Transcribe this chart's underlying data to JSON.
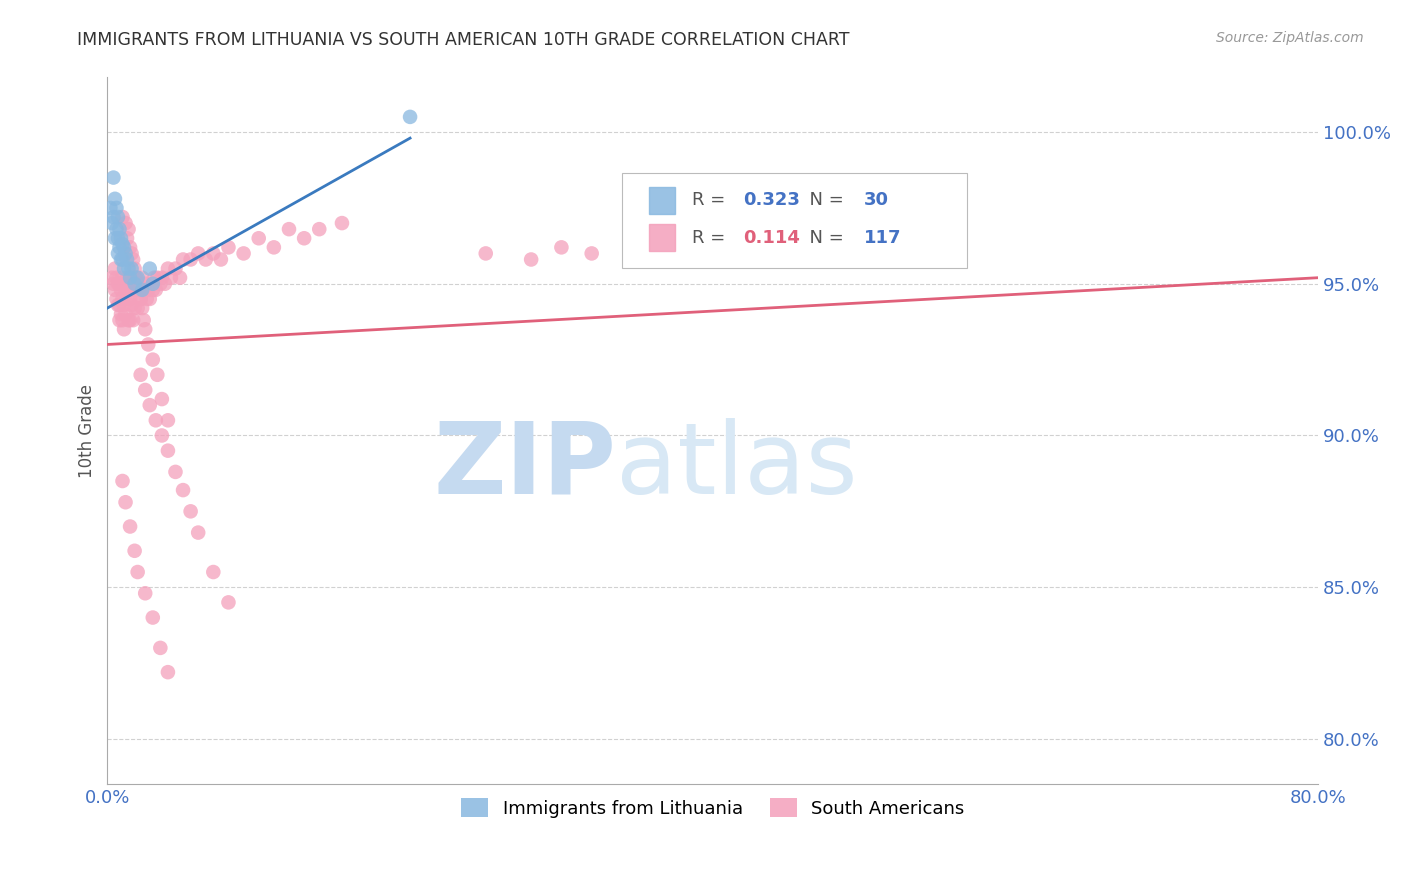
{
  "title": "IMMIGRANTS FROM LITHUANIA VS SOUTH AMERICAN 10TH GRADE CORRELATION CHART",
  "source": "Source: ZipAtlas.com",
  "ylabel": "10th Grade",
  "xlim": [
    0.0,
    0.8
  ],
  "ylim": [
    0.785,
    1.018
  ],
  "yticks": [
    0.8,
    0.85,
    0.9,
    0.95,
    1.0
  ],
  "ytick_labels": [
    "80.0%",
    "85.0%",
    "90.0%",
    "95.0%",
    "100.0%"
  ],
  "xticks": [
    0.0,
    0.1,
    0.2,
    0.3,
    0.4,
    0.5,
    0.6,
    0.7,
    0.8
  ],
  "xtick_labels": [
    "0.0%",
    "",
    "",
    "",
    "",
    "",
    "",
    "",
    "80.0%"
  ],
  "blue_R": 0.323,
  "blue_N": 30,
  "pink_R": 0.114,
  "pink_N": 117,
  "blue_color": "#89b8e0",
  "pink_color": "#f4a0bb",
  "blue_line_color": "#3a7abf",
  "pink_line_color": "#e0607a",
  "title_color": "#333333",
  "axis_label_color": "#555555",
  "tick_label_color": "#4472C4",
  "grid_color": "#cccccc",
  "watermark_zip_color": "#c5daf0",
  "watermark_atlas_color": "#d8e8f5",
  "blue_scatter_x": [
    0.002,
    0.003,
    0.004,
    0.004,
    0.005,
    0.005,
    0.006,
    0.006,
    0.007,
    0.007,
    0.007,
    0.008,
    0.008,
    0.009,
    0.009,
    0.01,
    0.01,
    0.011,
    0.011,
    0.012,
    0.013,
    0.014,
    0.015,
    0.016,
    0.018,
    0.02,
    0.023,
    0.028,
    0.03,
    0.2
  ],
  "blue_scatter_y": [
    0.975,
    0.97,
    0.985,
    0.972,
    0.978,
    0.965,
    0.975,
    0.968,
    0.972,
    0.965,
    0.96,
    0.968,
    0.962,
    0.965,
    0.958,
    0.963,
    0.958,
    0.962,
    0.955,
    0.96,
    0.958,
    0.955,
    0.952,
    0.955,
    0.95,
    0.952,
    0.948,
    0.955,
    0.95,
    1.005
  ],
  "pink_scatter_x": [
    0.003,
    0.004,
    0.005,
    0.005,
    0.006,
    0.006,
    0.007,
    0.007,
    0.008,
    0.008,
    0.008,
    0.009,
    0.009,
    0.01,
    0.01,
    0.01,
    0.011,
    0.011,
    0.011,
    0.012,
    0.012,
    0.013,
    0.013,
    0.014,
    0.014,
    0.015,
    0.015,
    0.015,
    0.016,
    0.016,
    0.017,
    0.017,
    0.018,
    0.018,
    0.019,
    0.02,
    0.02,
    0.021,
    0.022,
    0.023,
    0.024,
    0.025,
    0.026,
    0.027,
    0.028,
    0.03,
    0.031,
    0.032,
    0.033,
    0.035,
    0.036,
    0.038,
    0.04,
    0.042,
    0.045,
    0.048,
    0.05,
    0.055,
    0.06,
    0.065,
    0.07,
    0.075,
    0.08,
    0.09,
    0.1,
    0.11,
    0.12,
    0.13,
    0.14,
    0.155,
    0.01,
    0.012,
    0.013,
    0.014,
    0.015,
    0.016,
    0.017,
    0.018,
    0.019,
    0.02,
    0.021,
    0.022,
    0.023,
    0.024,
    0.025,
    0.027,
    0.03,
    0.033,
    0.036,
    0.04,
    0.022,
    0.025,
    0.028,
    0.032,
    0.036,
    0.04,
    0.045,
    0.05,
    0.055,
    0.06,
    0.07,
    0.08,
    0.25,
    0.28,
    0.3,
    0.32,
    0.35,
    0.38,
    0.01,
    0.012,
    0.015,
    0.018,
    0.02,
    0.025,
    0.03,
    0.035,
    0.04
  ],
  "pink_scatter_y": [
    0.952,
    0.95,
    0.955,
    0.948,
    0.952,
    0.945,
    0.95,
    0.943,
    0.95,
    0.943,
    0.938,
    0.948,
    0.94,
    0.952,
    0.945,
    0.938,
    0.95,
    0.943,
    0.935,
    0.948,
    0.94,
    0.952,
    0.945,
    0.948,
    0.938,
    0.952,
    0.945,
    0.938,
    0.95,
    0.943,
    0.948,
    0.938,
    0.952,
    0.942,
    0.948,
    0.95,
    0.942,
    0.948,
    0.945,
    0.952,
    0.948,
    0.95,
    0.945,
    0.948,
    0.945,
    0.948,
    0.952,
    0.948,
    0.952,
    0.95,
    0.952,
    0.95,
    0.955,
    0.952,
    0.955,
    0.952,
    0.958,
    0.958,
    0.96,
    0.958,
    0.96,
    0.958,
    0.962,
    0.96,
    0.965,
    0.962,
    0.968,
    0.965,
    0.968,
    0.97,
    0.972,
    0.97,
    0.965,
    0.968,
    0.962,
    0.96,
    0.958,
    0.955,
    0.952,
    0.95,
    0.948,
    0.945,
    0.942,
    0.938,
    0.935,
    0.93,
    0.925,
    0.92,
    0.912,
    0.905,
    0.92,
    0.915,
    0.91,
    0.905,
    0.9,
    0.895,
    0.888,
    0.882,
    0.875,
    0.868,
    0.855,
    0.845,
    0.96,
    0.958,
    0.962,
    0.96,
    0.962,
    0.965,
    0.885,
    0.878,
    0.87,
    0.862,
    0.855,
    0.848,
    0.84,
    0.83,
    0.822
  ],
  "blue_line_x0": 0.0,
  "blue_line_x1": 0.2,
  "blue_line_y0": 0.942,
  "blue_line_y1": 0.998,
  "pink_line_x0": 0.0,
  "pink_line_x1": 0.8,
  "pink_line_y0": 0.93,
  "pink_line_y1": 0.952
}
